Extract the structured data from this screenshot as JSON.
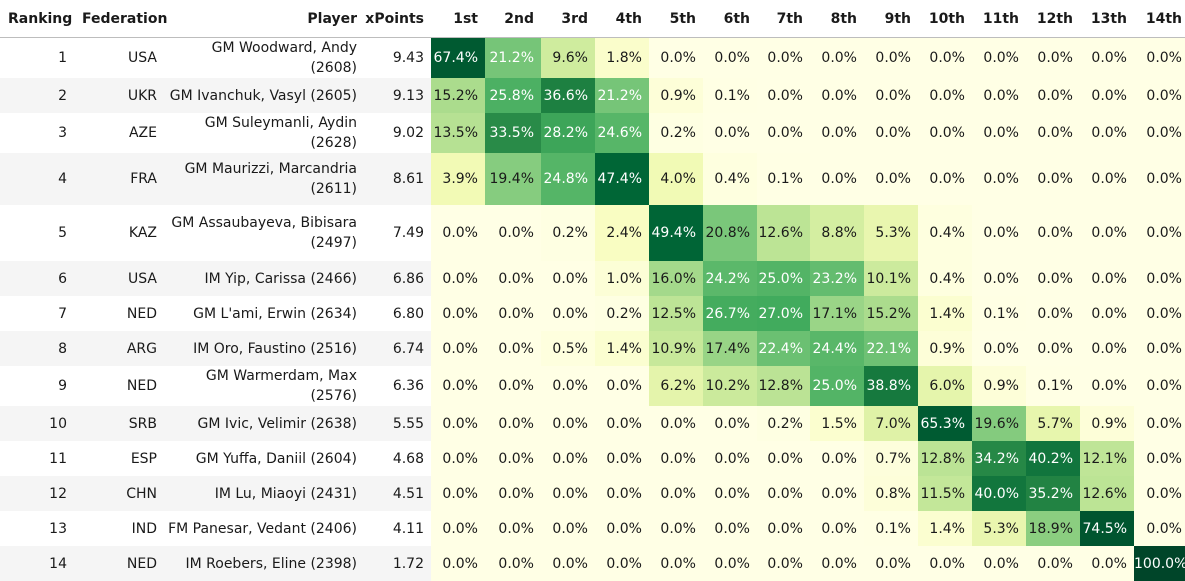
{
  "headers": {
    "ranking": "Ranking",
    "federation": "Federation",
    "player": "Player",
    "xpoints": "xPoints",
    "positions": [
      "1st",
      "2nd",
      "3rd",
      "4th",
      "5th",
      "6th",
      "7th",
      "8th",
      "9th",
      "10th",
      "11th",
      "12th",
      "13th",
      "14th"
    ]
  },
  "rows": [
    {
      "ranking": "1",
      "federation": "USA",
      "player": "GM Woodward, Andy (2608)",
      "xpoints": "9.43",
      "probs": [
        "67.4%",
        "21.2%",
        "9.6%",
        "1.8%",
        "0.0%",
        "0.0%",
        "0.0%",
        "0.0%",
        "0.0%",
        "0.0%",
        "0.0%",
        "0.0%",
        "0.0%",
        "0.0%"
      ]
    },
    {
      "ranking": "2",
      "federation": "UKR",
      "player": "GM Ivanchuk, Vasyl (2605)",
      "xpoints": "9.13",
      "probs": [
        "15.2%",
        "25.8%",
        "36.6%",
        "21.2%",
        "0.9%",
        "0.1%",
        "0.0%",
        "0.0%",
        "0.0%",
        "0.0%",
        "0.0%",
        "0.0%",
        "0.0%",
        "0.0%"
      ]
    },
    {
      "ranking": "3",
      "federation": "AZE",
      "player": "GM Suleymanli, Aydin (2628)",
      "xpoints": "9.02",
      "probs": [
        "13.5%",
        "33.5%",
        "28.2%",
        "24.6%",
        "0.2%",
        "0.0%",
        "0.0%",
        "0.0%",
        "0.0%",
        "0.0%",
        "0.0%",
        "0.0%",
        "0.0%",
        "0.0%"
      ]
    },
    {
      "ranking": "4",
      "federation": "FRA",
      "player": "GM Maurizzi, Marcandria (2611)",
      "xpoints": "8.61",
      "probs": [
        "3.9%",
        "19.4%",
        "24.8%",
        "47.4%",
        "4.0%",
        "0.4%",
        "0.1%",
        "0.0%",
        "0.0%",
        "0.0%",
        "0.0%",
        "0.0%",
        "0.0%",
        "0.0%"
      ]
    },
    {
      "ranking": "5",
      "federation": "KAZ",
      "player": "GM Assaubayeva, Bibisara (2497)",
      "xpoints": "7.49",
      "probs": [
        "0.0%",
        "0.0%",
        "0.2%",
        "2.4%",
        "49.4%",
        "20.8%",
        "12.6%",
        "8.8%",
        "5.3%",
        "0.4%",
        "0.0%",
        "0.0%",
        "0.0%",
        "0.0%"
      ]
    },
    {
      "ranking": "6",
      "federation": "USA",
      "player": "IM Yip, Carissa (2466)",
      "xpoints": "6.86",
      "probs": [
        "0.0%",
        "0.0%",
        "0.0%",
        "1.0%",
        "16.0%",
        "24.2%",
        "25.0%",
        "23.2%",
        "10.1%",
        "0.4%",
        "0.0%",
        "0.0%",
        "0.0%",
        "0.0%"
      ]
    },
    {
      "ranking": "7",
      "federation": "NED",
      "player": "GM L'ami, Erwin (2634)",
      "xpoints": "6.80",
      "probs": [
        "0.0%",
        "0.0%",
        "0.0%",
        "0.2%",
        "12.5%",
        "26.7%",
        "27.0%",
        "17.1%",
        "15.2%",
        "1.4%",
        "0.1%",
        "0.0%",
        "0.0%",
        "0.0%"
      ]
    },
    {
      "ranking": "8",
      "federation": "ARG",
      "player": "IM Oro, Faustino (2516)",
      "xpoints": "6.74",
      "probs": [
        "0.0%",
        "0.0%",
        "0.5%",
        "1.4%",
        "10.9%",
        "17.4%",
        "22.4%",
        "24.4%",
        "22.1%",
        "0.9%",
        "0.0%",
        "0.0%",
        "0.0%",
        "0.0%"
      ]
    },
    {
      "ranking": "9",
      "federation": "NED",
      "player": "GM Warmerdam, Max (2576)",
      "xpoints": "6.36",
      "probs": [
        "0.0%",
        "0.0%",
        "0.0%",
        "0.0%",
        "6.2%",
        "10.2%",
        "12.8%",
        "25.0%",
        "38.8%",
        "6.0%",
        "0.9%",
        "0.1%",
        "0.0%",
        "0.0%"
      ]
    },
    {
      "ranking": "10",
      "federation": "SRB",
      "player": "GM Ivic, Velimir (2638)",
      "xpoints": "5.55",
      "probs": [
        "0.0%",
        "0.0%",
        "0.0%",
        "0.0%",
        "0.0%",
        "0.0%",
        "0.2%",
        "1.5%",
        "7.0%",
        "65.3%",
        "19.6%",
        "5.7%",
        "0.9%",
        "0.0%"
      ]
    },
    {
      "ranking": "11",
      "federation": "ESP",
      "player": "GM Yuffa, Daniil (2604)",
      "xpoints": "4.68",
      "probs": [
        "0.0%",
        "0.0%",
        "0.0%",
        "0.0%",
        "0.0%",
        "0.0%",
        "0.0%",
        "0.0%",
        "0.7%",
        "12.8%",
        "34.2%",
        "40.2%",
        "12.1%",
        "0.0%"
      ]
    },
    {
      "ranking": "12",
      "federation": "CHN",
      "player": "IM Lu, Miaoyi (2431)",
      "xpoints": "4.51",
      "probs": [
        "0.0%",
        "0.0%",
        "0.0%",
        "0.0%",
        "0.0%",
        "0.0%",
        "0.0%",
        "0.0%",
        "0.8%",
        "11.5%",
        "40.0%",
        "35.2%",
        "12.6%",
        "0.0%"
      ]
    },
    {
      "ranking": "13",
      "federation": "IND",
      "player": "FM Panesar, Vedant (2406)",
      "xpoints": "4.11",
      "probs": [
        "0.0%",
        "0.0%",
        "0.0%",
        "0.0%",
        "0.0%",
        "0.0%",
        "0.0%",
        "0.0%",
        "0.1%",
        "1.4%",
        "5.3%",
        "18.9%",
        "74.5%",
        "0.0%"
      ]
    },
    {
      "ranking": "14",
      "federation": "NED",
      "player": "IM Roebers, Eline (2398)",
      "xpoints": "1.72",
      "probs": [
        "0.0%",
        "0.0%",
        "0.0%",
        "0.0%",
        "0.0%",
        "0.0%",
        "0.0%",
        "0.0%",
        "0.0%",
        "0.0%",
        "0.0%",
        "0.0%",
        "0.0%",
        "100.0%"
      ]
    }
  ]
}
